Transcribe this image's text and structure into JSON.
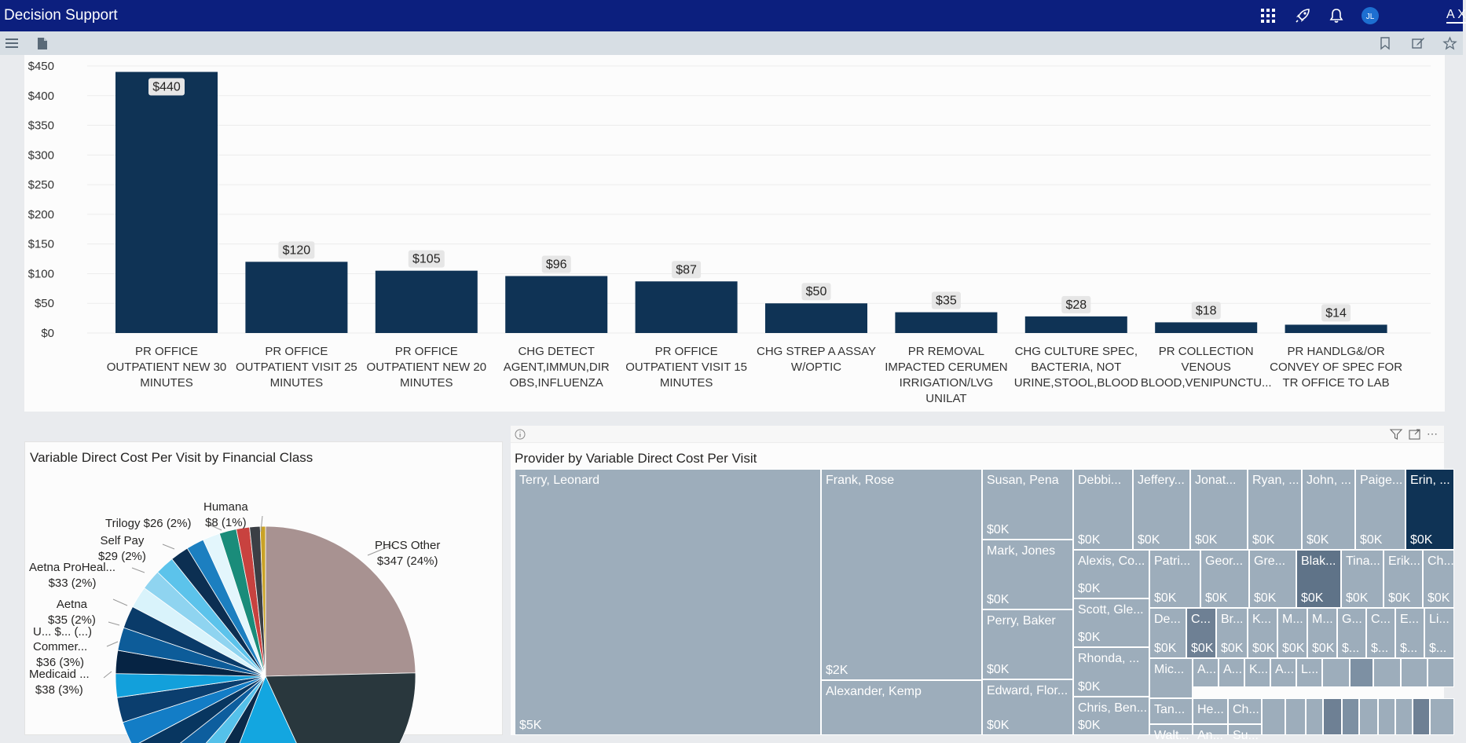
{
  "app": {
    "title": "Decision Support",
    "user_initials": "JL",
    "corner_text": "A X"
  },
  "topbar_icons": [
    "apps-grid-icon",
    "rocket-icon",
    "bell-icon",
    "avatar"
  ],
  "toolbar_icons": [
    "menu-icon",
    "page-icon",
    "bookmark-icon",
    "edit-icon",
    "star-icon"
  ],
  "bar_chart": {
    "chart_data": {
      "type": "bar",
      "categories": [
        "PR OFFICE OUTPATIENT NEW 30 MINUTES",
        "PR OFFICE OUTPATIENT VISIT 25 MINUTES",
        "PR OFFICE OUTPATIENT NEW 20 MINUTES",
        "CHG DETECT AGENT,IMMUN,DIR OBS,INFLUENZA",
        "PR OFFICE OUTPATIENT VISIT 15 MINUTES",
        "CHG STREP A ASSAY W/OPTIC",
        "PR REMOVAL IMPACTED CERUMEN IRRIGATION/LVG UNILAT",
        "CHG CULTURE SPEC, BACTERIA, NOT URINE,STOOL,BLOOD",
        "PR COLLECTION VENOUS BLOOD,VENIPUNCTU...",
        "PR HANDLG&/OR CONVEY OF SPEC FOR TR OFFICE TO LAB"
      ],
      "category_lines": [
        [
          "PR OFFICE",
          "OUTPATIENT NEW 30",
          "MINUTES"
        ],
        [
          "PR OFFICE",
          "OUTPATIENT VISIT 25",
          "MINUTES"
        ],
        [
          "PR OFFICE",
          "OUTPATIENT NEW 20",
          "MINUTES"
        ],
        [
          "CHG DETECT",
          "AGENT,IMMUN,DIR",
          "OBS,INFLUENZA"
        ],
        [
          "PR OFFICE",
          "OUTPATIENT VISIT 15",
          "MINUTES"
        ],
        [
          "CHG STREP A ASSAY",
          "W/OPTIC"
        ],
        [
          "PR REMOVAL",
          "IMPACTED CERUMEN",
          "IRRIGATION/LVG",
          "UNILAT"
        ],
        [
          "CHG CULTURE SPEC,",
          "BACTERIA, NOT",
          "URINE,STOOL,BLOOD"
        ],
        [
          "PR COLLECTION",
          "VENOUS",
          "BLOOD,VENIPUNCTU..."
        ],
        [
          "PR HANDLG&/OR",
          "CONVEY OF SPEC FOR",
          "TR OFFICE TO LAB"
        ]
      ],
      "values": [
        440,
        120,
        105,
        96,
        87,
        50,
        35,
        28,
        18,
        14
      ],
      "data_labels": [
        "$440",
        "$120",
        "$105",
        "$96",
        "$87",
        "$50",
        "$35",
        "$28",
        "$18",
        "$14"
      ],
      "yticks": [
        "$0",
        "$50",
        "$100",
        "$150",
        "$200",
        "$250",
        "$300",
        "$350",
        "$400",
        "$450"
      ],
      "ylim": [
        0,
        450
      ],
      "grid": true,
      "bar_color": "#0f3355"
    }
  },
  "pie_chart": {
    "title": "Variable Direct Cost Per Visit by Financial Class",
    "chart_data": {
      "type": "pie",
      "slices": [
        {
          "name": "PHCS Other",
          "value": 347,
          "pct": 24,
          "color": "#a89291"
        },
        {
          "name": "",
          "value": 260,
          "pct": 18,
          "color": "#29373d"
        },
        {
          "name": "",
          "value": 180,
          "pct": 12.5,
          "color": "#13a6e0"
        },
        {
          "name": "",
          "value": 40,
          "pct": 2.8,
          "color": "#0a2a4a"
        },
        {
          "name": "",
          "value": 40,
          "pct": 2.8,
          "color": "#55c1ea"
        },
        {
          "name": "",
          "value": 40,
          "pct": 2.8,
          "color": "#0d5e9e"
        },
        {
          "name": "",
          "value": 40,
          "pct": 2.8,
          "color": "#083660"
        },
        {
          "name": "",
          "value": 39,
          "pct": 2.7,
          "color": "#137dc6"
        },
        {
          "name": "Medicaid ...",
          "value": 38,
          "pct": 3,
          "color": "#0b3e6e"
        },
        {
          "name": "Commer...",
          "value": 36,
          "pct": 3,
          "color": "#12a0db"
        },
        {
          "name": "U... $...",
          "value": 35,
          "pct": 2.5,
          "color": "#062444"
        },
        {
          "name": "Aetna",
          "value": 35,
          "pct": 2,
          "color": "#0d5c99"
        },
        {
          "name": "",
          "value": 34,
          "pct": 2.5,
          "color": "#0a3b69"
        },
        {
          "name": "Aetna ProHeal...",
          "value": 33,
          "pct": 2,
          "color": "#d9f3fb"
        },
        {
          "name": "",
          "value": 31,
          "pct": 2,
          "color": "#8fd4f0"
        },
        {
          "name": "Self Pay",
          "value": 29,
          "pct": 2,
          "color": "#5cc3eb"
        },
        {
          "name": "",
          "value": 28,
          "pct": 2,
          "color": "#0c2f52"
        },
        {
          "name": "",
          "value": 27,
          "pct": 2,
          "color": "#1c7fc0"
        },
        {
          "name": "",
          "value": 26,
          "pct": 2,
          "color": "#e3f6fc"
        },
        {
          "name": "Trilogy",
          "value": 26,
          "pct": 2,
          "color": "#1a8c7a"
        },
        {
          "name": "",
          "value": 20,
          "pct": 1.4,
          "color": "#c8423f"
        },
        {
          "name": "",
          "value": 16,
          "pct": 1.1,
          "color": "#3b3f45"
        },
        {
          "name": "Humana",
          "value": 8,
          "pct": 1,
          "color": "#c9a227"
        }
      ]
    },
    "labels": [
      {
        "line1": "PHCS Other",
        "line2": "$347 (24%)"
      },
      {
        "line1": "Humana",
        "line2": "$8 (1%)"
      },
      {
        "line1": "Trilogy $26 (2%)",
        "line2": ""
      },
      {
        "line1": "Self Pay",
        "line2": "$29 (2%)"
      },
      {
        "line1": "Aetna ProHeal...",
        "line2": "$33 (2%)"
      },
      {
        "line1": "Aetna",
        "line2": "$35 (2%)"
      },
      {
        "line1": "U... $... (...)",
        "line2": ""
      },
      {
        "line1": "Commer...",
        "line2": "$36 (3%)"
      },
      {
        "line1": "Medicaid ...",
        "line2": "$38 (3%)"
      }
    ]
  },
  "treemap": {
    "title": "Provider by Variable Direct Cost Per Visit",
    "header_icons": [
      "info-icon",
      "filter-icon",
      "focus-mode-icon",
      "more-options-icon"
    ],
    "tiles": [
      {
        "name": "Terry, Leonard",
        "value": "$5K"
      },
      {
        "name": "Frank, Rose",
        "value": "$2K"
      },
      {
        "name": "Alexander, Kemp",
        "value": ""
      },
      {
        "name": "Susan, Pena",
        "value": "$0K"
      },
      {
        "name": "Mark, Jones",
        "value": "$0K"
      },
      {
        "name": "Perry, Baker",
        "value": "$0K"
      },
      {
        "name": "Edward, Flor...",
        "value": "$0K"
      },
      {
        "name": "Debbi...",
        "value": "$0K"
      },
      {
        "name": "Jeffery...",
        "value": "$0K"
      },
      {
        "name": "Jonat...",
        "value": "$0K"
      },
      {
        "name": "Ryan, ...",
        "value": "$0K"
      },
      {
        "name": "John, ...",
        "value": "$0K"
      },
      {
        "name": "Paige...",
        "value": "$0K"
      },
      {
        "name": "Erin, ...",
        "value": "$0K"
      },
      {
        "name": "Alexis, Co...",
        "value": "$0K"
      },
      {
        "name": "Patri...",
        "value": "$0K"
      },
      {
        "name": "Geor...",
        "value": "$0K"
      },
      {
        "name": "Gre...",
        "value": "$0K"
      },
      {
        "name": "Blak...",
        "value": "$0K"
      },
      {
        "name": "Tina...",
        "value": "$0K"
      },
      {
        "name": "Erik...",
        "value": "$0K"
      },
      {
        "name": "Ch...",
        "value": "$0K"
      },
      {
        "name": "Scott, Gle...",
        "value": "$0K"
      },
      {
        "name": "Rhonda, ...",
        "value": "$0K"
      },
      {
        "name": "Chris, Ben...",
        "value": "$0K"
      },
      {
        "name": "De...",
        "value": "$0K"
      },
      {
        "name": "C...",
        "value": "$0K"
      },
      {
        "name": "Br...",
        "value": "$0K"
      },
      {
        "name": "K...",
        "value": "$0K"
      },
      {
        "name": "M...",
        "value": "$0K"
      },
      {
        "name": "M...",
        "value": "$0K"
      },
      {
        "name": "G...",
        "value": "$..."
      },
      {
        "name": "C...",
        "value": "$..."
      },
      {
        "name": "E...",
        "value": "$..."
      },
      {
        "name": "Li...",
        "value": "$..."
      },
      {
        "name": "Mic...",
        "value": ""
      },
      {
        "name": "A...",
        "value": ""
      },
      {
        "name": "A...",
        "value": ""
      },
      {
        "name": "K...",
        "value": ""
      },
      {
        "name": "A...",
        "value": ""
      },
      {
        "name": "L...",
        "value": ""
      },
      {
        "name": "Tan...",
        "value": ""
      },
      {
        "name": "He...",
        "value": ""
      },
      {
        "name": "Ch...",
        "value": ""
      },
      {
        "name": "Walt...",
        "value": ""
      },
      {
        "name": "An...",
        "value": ""
      },
      {
        "name": "Su...",
        "value": ""
      }
    ]
  }
}
